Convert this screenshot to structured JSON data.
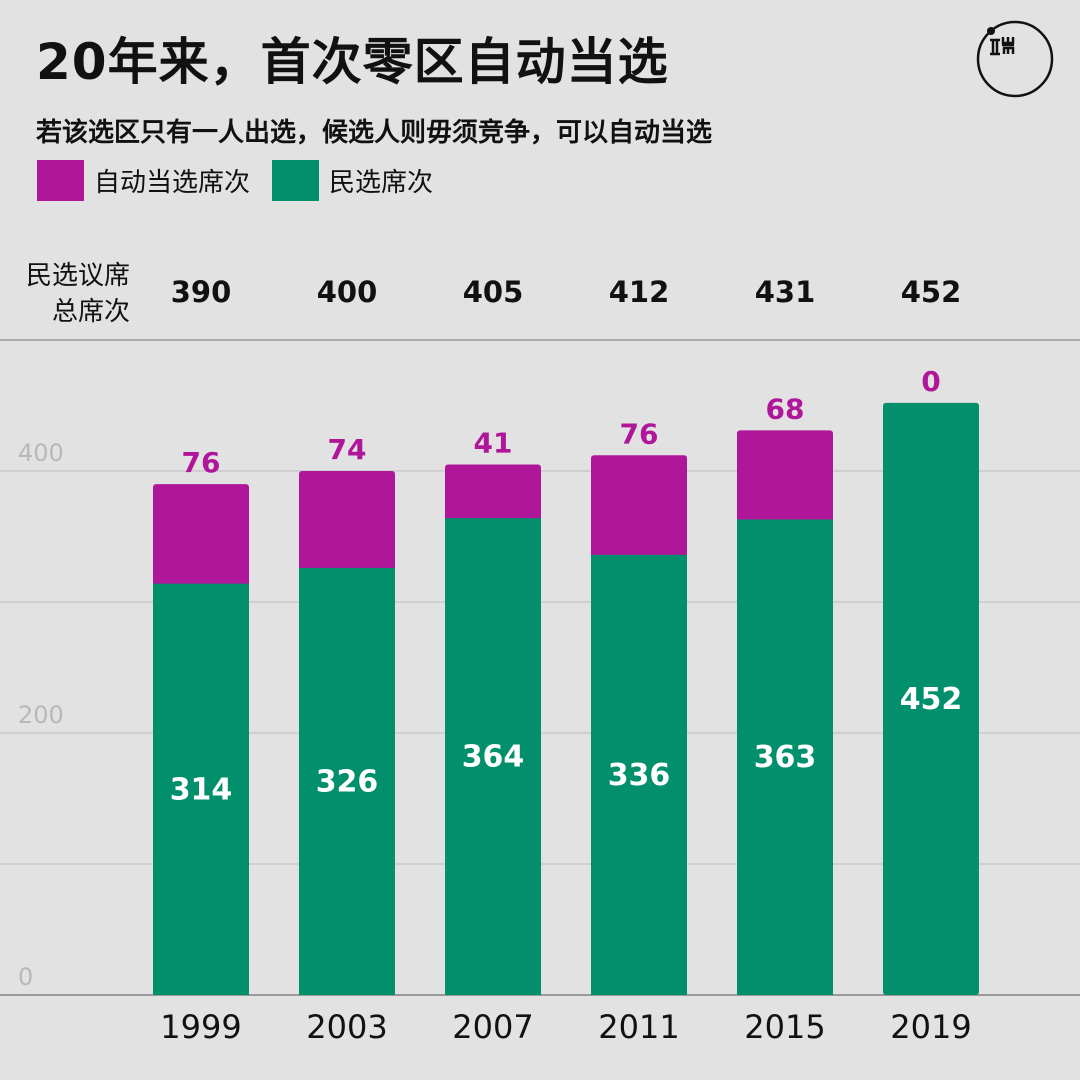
{
  "header": {
    "title": "20年来，首次零区自动当选",
    "subtitle": "若该选区只有一人出选，候选人则毋须竞争，可以自动当选"
  },
  "logo": {
    "icon": "initium-logo-icon",
    "text": "端"
  },
  "colors": {
    "auto": "#b0169a",
    "elected": "#028f6c",
    "background": "#e2e2e2"
  },
  "chart_data": {
    "type": "bar",
    "stacked": true,
    "categories": [
      "1999",
      "2003",
      "2007",
      "2011",
      "2015",
      "2019"
    ],
    "series": [
      {
        "name": "民选席次",
        "values": [
          314,
          326,
          364,
          336,
          363,
          452
        ]
      },
      {
        "name": "自动当选席次",
        "values": [
          76,
          74,
          41,
          76,
          68,
          0
        ]
      }
    ],
    "totals_label": [
      "民选议席",
      "总席次"
    ],
    "totals": [
      390,
      400,
      405,
      412,
      431,
      452
    ],
    "yticks": [
      0,
      200,
      400
    ],
    "ylim": [
      0,
      480
    ],
    "grid": true,
    "legend_position": "top-left"
  }
}
